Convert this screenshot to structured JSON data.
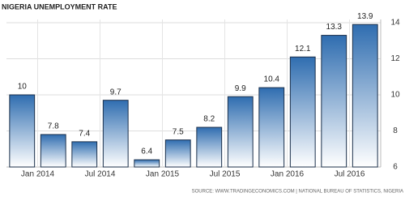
{
  "chart_data": {
    "type": "bar",
    "title": "NIGERIA UNEMPLOYMENT RATE",
    "source": "SOURCE: WWW.TRADINGECONOMICS.COM | NATIONAL BUREAU OF STATISTICS, NIGERIA",
    "categories": [
      null,
      "Jan 2014",
      null,
      "Jul 2014",
      null,
      "Jan 2015",
      null,
      "Jul 2015",
      null,
      "Jan 2016",
      null,
      "Jul 2016"
    ],
    "values": [
      10,
      7.8,
      7.4,
      9.7,
      6.4,
      7.5,
      8.2,
      9.9,
      10.4,
      12.1,
      13.3,
      13.9
    ],
    "color": "#2f6db0",
    "ylim": [
      6,
      14
    ],
    "yticks": [
      6,
      8,
      10,
      12,
      14
    ],
    "grid": true
  }
}
